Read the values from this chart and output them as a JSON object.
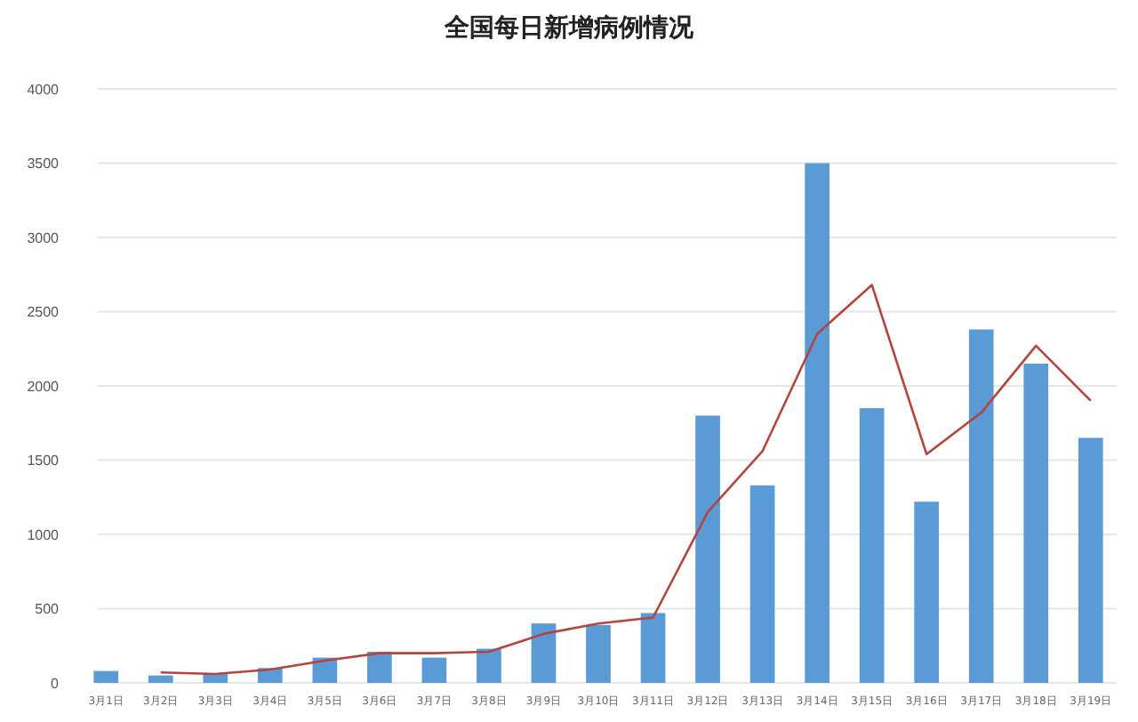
{
  "chart_data": {
    "type": "bar",
    "title": "全国每日新增病例情况",
    "categories": [
      "3月1日",
      "3月2日",
      "3月3日",
      "3月4日",
      "3月5日",
      "3月6日",
      "3月7日",
      "3月8日",
      "3月9日",
      "3月10日",
      "3月11日",
      "3月12日",
      "3月13日",
      "3月14日",
      "3月15日",
      "3月16日",
      "3月17日",
      "3月18日",
      "3月19日"
    ],
    "series": [
      {
        "color": "#5b9bd5",
        "values": [
          80,
          50,
          60,
          100,
          170,
          210,
          170,
          230,
          400,
          390,
          470,
          1800,
          1330,
          3500,
          1850,
          1220,
          2380,
          2150,
          1650
        ]
      },
      {
        "type": "line",
        "color": "#b5443f",
        "values": [
          null,
          70,
          60,
          90,
          150,
          200,
          200,
          210,
          330,
          400,
          440,
          1150,
          1560,
          2350,
          2680,
          1540,
          1820,
          2270,
          1900
        ]
      }
    ],
    "ylim": [
      0,
      4000
    ],
    "yticks": [
      0,
      500,
      1000,
      1500,
      2000,
      2500,
      3000,
      3500,
      4000
    ],
    "grid": "y",
    "marker": "none",
    "line_style": "solid"
  }
}
